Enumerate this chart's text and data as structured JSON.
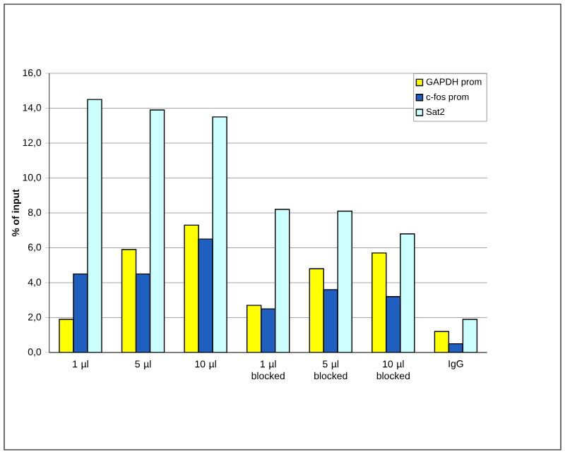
{
  "chart_data": {
    "type": "bar",
    "ylabel": "% of input",
    "categories": [
      "1 µl",
      "5 µl",
      "10 µl",
      "1 µl blocked",
      "5 µl blocked",
      "10 µl blocked",
      "IgG"
    ],
    "series": [
      {
        "name": "GAPDH prom",
        "color": "#ffff00",
        "values": [
          1.9,
          5.9,
          7.3,
          2.7,
          4.8,
          5.7,
          1.2
        ]
      },
      {
        "name": "c-fos prom",
        "color": "#1f5fc0",
        "values": [
          4.5,
          4.5,
          6.5,
          2.5,
          3.6,
          3.2,
          0.5
        ]
      },
      {
        "name": "Sat2",
        "color": "#ccffff",
        "values": [
          14.5,
          13.9,
          13.5,
          8.2,
          8.1,
          6.8,
          1.9
        ]
      }
    ],
    "ylim": [
      0,
      16
    ],
    "yticks": [
      {
        "value": 0,
        "label": "0,0"
      },
      {
        "value": 2,
        "label": "2,0"
      },
      {
        "value": 4,
        "label": "4,0"
      },
      {
        "value": 6,
        "label": "6,0"
      },
      {
        "value": 8,
        "label": "8,0"
      },
      {
        "value": 10,
        "label": "10,0"
      },
      {
        "value": 12,
        "label": "12,0"
      },
      {
        "value": 14,
        "label": "14,0"
      },
      {
        "value": 16,
        "label": "16,0"
      }
    ],
    "grid": "y",
    "legend": "top right"
  }
}
